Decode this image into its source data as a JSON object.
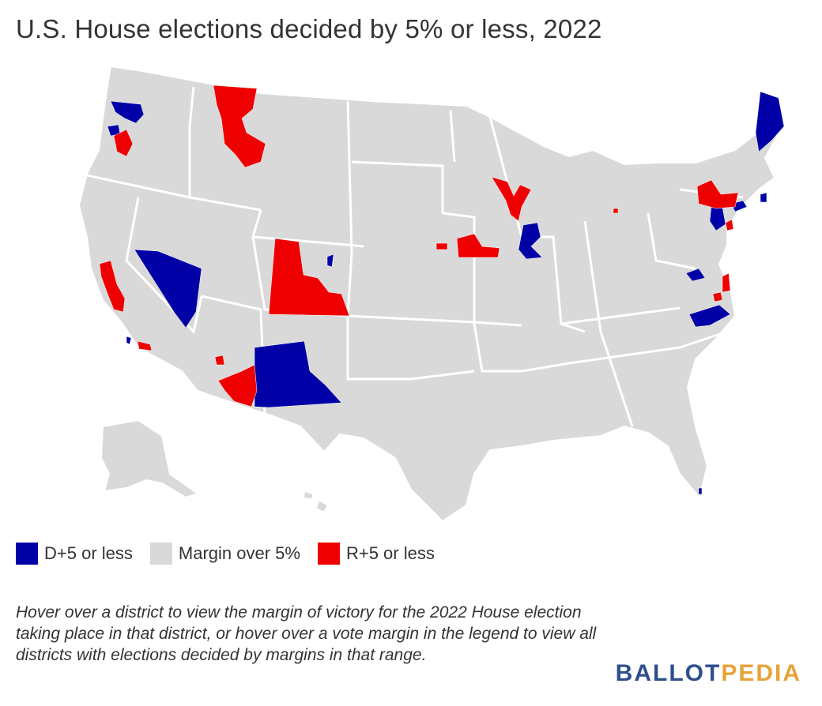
{
  "title": "U.S. House elections decided by 5% or less, 2022",
  "legend": [
    {
      "label": "D+5 or less",
      "color": "#0000a6"
    },
    {
      "label": "Margin over 5%",
      "color": "#d9d9d9"
    },
    {
      "label": "R+5 or less",
      "color": "#ef0000"
    }
  ],
  "note": "Hover over a district to view the margin of victory for the 2022 House election taking place in that district, or hover over a vote margin in the legend to view all districts with elections decided by margins in that range.",
  "brand": {
    "part1": "BALLOT",
    "part2": "PEDIA"
  },
  "colors": {
    "dem": "#0000a6",
    "rep": "#ef0000",
    "other": "#d9d9d9",
    "border": "#ffffff"
  }
}
